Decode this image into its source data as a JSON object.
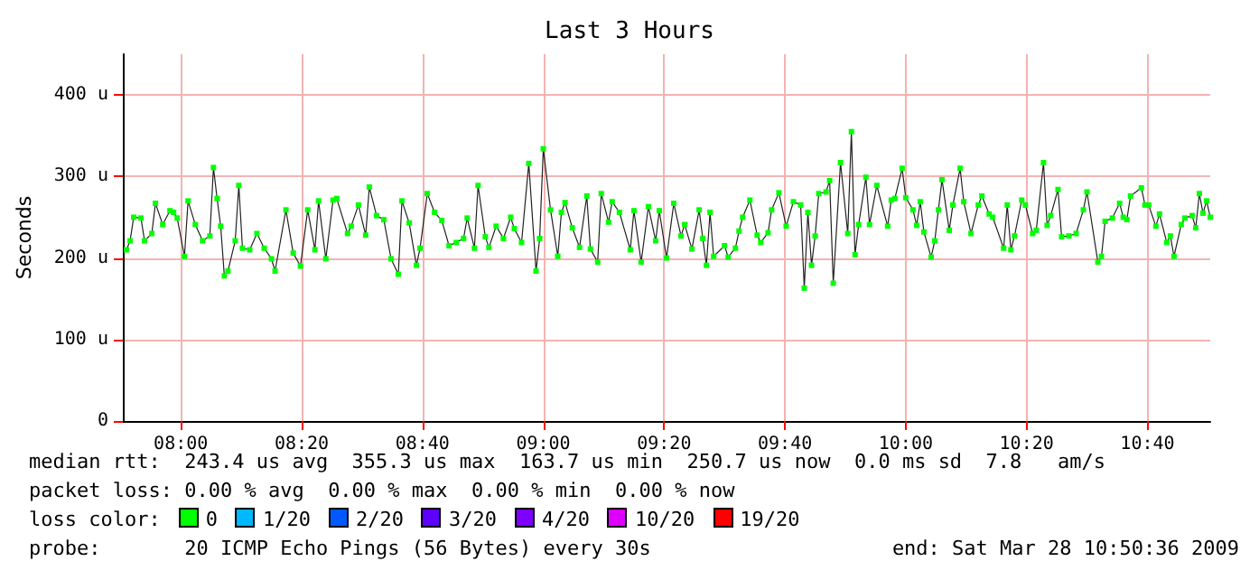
{
  "chart_data": {
    "type": "line",
    "title": "Last 3 Hours",
    "ylabel": "Seconds",
    "x": [
      7.85,
      7.86,
      7.87,
      7.89,
      7.9,
      7.92,
      7.93,
      7.95,
      7.97,
      7.98,
      7.99,
      8.01,
      8.02,
      8.04,
      8.06,
      8.08,
      8.09,
      8.1,
      8.11,
      8.12,
      8.13,
      8.15,
      8.16,
      8.17,
      8.19,
      8.21,
      8.23,
      8.25,
      8.26,
      8.29,
      8.31,
      8.33,
      8.35,
      8.37,
      8.38,
      8.4,
      8.42,
      8.43,
      8.46,
      8.47,
      8.49,
      8.51,
      8.52,
      8.54,
      8.56,
      8.58,
      8.6,
      8.61,
      8.63,
      8.65,
      8.66,
      8.68,
      8.7,
      8.72,
      8.74,
      8.76,
      8.78,
      8.79,
      8.81,
      8.82,
      8.84,
      8.85,
      8.87,
      8.89,
      8.91,
      8.92,
      8.94,
      8.96,
      8.98,
      8.99,
      9.0,
      9.02,
      9.04,
      9.05,
      9.06,
      9.08,
      9.1,
      9.12,
      9.13,
      9.15,
      9.16,
      9.18,
      9.19,
      9.21,
      9.24,
      9.25,
      9.27,
      9.29,
      9.31,
      9.32,
      9.34,
      9.36,
      9.38,
      9.39,
      9.41,
      9.43,
      9.44,
      9.45,
      9.46,
      9.47,
      9.5,
      9.51,
      9.53,
      9.54,
      9.55,
      9.57,
      9.59,
      9.6,
      9.62,
      9.63,
      9.65,
      9.67,
      9.69,
      9.71,
      9.72,
      9.73,
      9.74,
      9.75,
      9.76,
      9.78,
      9.79,
      9.8,
      9.82,
      9.84,
      9.85,
      9.86,
      9.87,
      9.89,
      9.9,
      9.92,
      9.95,
      9.96,
      9.97,
      9.99,
      10.0,
      10.02,
      10.03,
      10.04,
      10.05,
      10.07,
      10.08,
      10.09,
      10.1,
      10.12,
      10.13,
      10.15,
      10.16,
      10.18,
      10.2,
      10.21,
      10.23,
      10.24,
      10.27,
      10.28,
      10.29,
      10.3,
      10.32,
      10.33,
      10.35,
      10.36,
      10.38,
      10.39,
      10.4,
      10.42,
      10.43,
      10.45,
      10.47,
      10.49,
      10.5,
      10.53,
      10.54,
      10.55,
      10.57,
      10.59,
      10.6,
      10.61,
      10.62,
      10.65,
      10.66,
      10.67,
      10.69,
      10.7,
      10.72,
      10.73,
      10.74,
      10.76,
      10.77,
      10.79,
      10.8,
      10.81,
      10.82,
      10.83,
      10.84
    ],
    "series": [
      {
        "color": "#00ff00",
        "values": [
          210,
          221,
          250,
          249,
          221,
          230,
          267,
          241,
          258,
          256,
          249,
          202,
          270,
          241,
          221,
          227,
          311,
          273,
          239,
          178,
          184,
          221,
          289,
          212,
          210,
          230,
          212,
          199,
          184,
          259,
          206,
          190,
          259,
          210,
          270,
          199,
          271,
          273,
          230,
          239,
          265,
          228,
          287,
          252,
          247,
          199,
          180,
          270,
          243,
          191,
          212,
          279,
          256,
          246,
          215,
          219,
          224,
          249,
          212,
          289,
          226,
          213,
          239,
          224,
          250,
          236,
          219,
          316,
          184,
          224,
          334,
          259,
          202,
          256,
          268,
          237,
          213,
          276,
          211,
          195,
          279,
          244,
          269,
          256,
          210,
          258,
          195,
          263,
          221,
          258,
          200,
          267,
          227,
          241,
          211,
          259,
          224,
          191,
          256,
          202,
          215,
          201,
          212,
          233,
          250,
          271,
          228,
          219,
          231,
          259,
          280,
          239,
          269,
          265,
          163,
          256,
          191,
          227,
          279,
          281,
          295,
          169,
          317,
          230,
          355,
          204,
          241,
          299,
          241,
          289,
          239,
          271,
          273,
          310,
          274,
          259,
          240,
          269,
          232,
          201,
          221,
          259,
          296,
          234,
          265,
          310,
          269,
          230,
          265,
          276,
          254,
          250,
          212,
          265,
          210,
          227,
          271,
          265,
          230,
          234,
          317,
          240,
          252,
          284,
          226,
          227,
          230,
          259,
          281,
          195,
          202,
          245,
          249,
          267,
          250,
          247,
          276,
          286,
          265,
          265,
          239,
          254,
          219,
          227,
          202,
          241,
          249,
          252,
          237,
          279,
          255,
          270,
          250
        ]
      }
    ],
    "xlim": [
      7.84,
      10.84
    ],
    "xticks": [
      {
        "value": 8,
        "label": "08:00"
      },
      {
        "value": 8.333333,
        "label": "08:20"
      },
      {
        "value": 8.666667,
        "label": "08:40"
      },
      {
        "value": 9,
        "label": "09:00"
      },
      {
        "value": 9.333333,
        "label": "09:20"
      },
      {
        "value": 9.666667,
        "label": "09:40"
      },
      {
        "value": 10,
        "label": "10:00"
      },
      {
        "value": 10.333333,
        "label": "10:20"
      },
      {
        "value": 10.666667,
        "label": "10:40"
      }
    ],
    "ylim": [
      0,
      450
    ],
    "yticks": [
      {
        "value": 0,
        "label": "0"
      },
      {
        "value": 100,
        "label": "100 u"
      },
      {
        "value": 200,
        "label": "200 u"
      },
      {
        "value": 300,
        "label": "300 u"
      },
      {
        "value": 400,
        "label": "400 u"
      }
    ],
    "grid": true,
    "marker": "square",
    "line_style": "solid",
    "annotations": [
      "median rtt:  243.4 us avg  355.3 us max  163.7 us min  250.7 us now  0.0 ms sd  7.8   am/s",
      "packet loss: 0.00 % avg  0.00 % max  0.00 % min  0.00 % now",
      "loss color:",
      "0",
      "1/20",
      "2/20",
      "3/20",
      "4/20",
      "10/20",
      "19/20",
      "probe:       20 ICMP Echo Pings (56 Bytes) every 30s",
      "end: Sat Mar 28 10:50:36 2009"
    ]
  }
}
